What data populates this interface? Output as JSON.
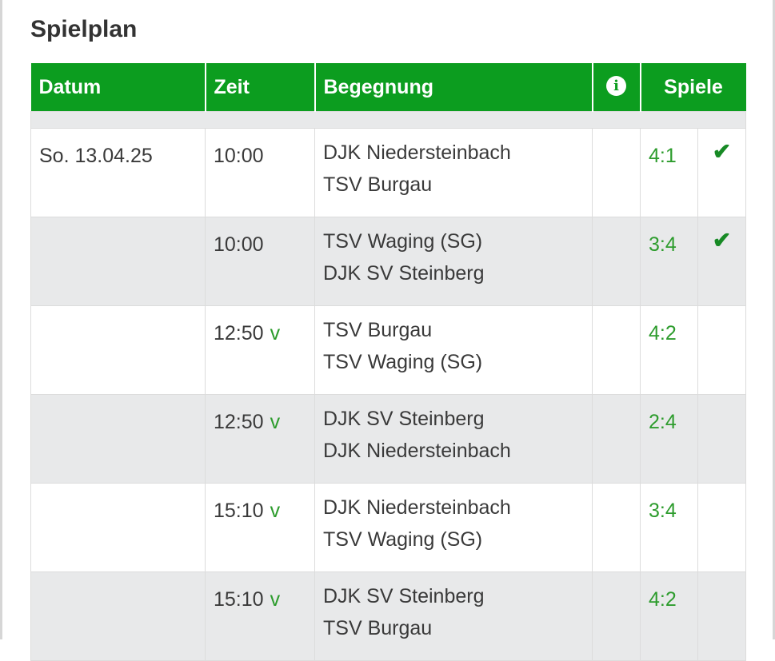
{
  "page": {
    "title": "Spielplan"
  },
  "table": {
    "headers": {
      "datum": "Datum",
      "zeit": "Zeit",
      "begegnung": "Begegnung",
      "spiele": "Spiele"
    },
    "rows": [
      {
        "datum": "So. 13.04.25",
        "zeit": "10:00",
        "v": "",
        "team1": "DJK Niedersteinbach",
        "team2": "TSV Burgau",
        "score": "4:1",
        "check": "✔"
      },
      {
        "datum": "",
        "zeit": "10:00",
        "v": "",
        "team1": "TSV Waging (SG)",
        "team2": "DJK SV Steinberg",
        "score": "3:4",
        "check": "✔"
      },
      {
        "datum": "",
        "zeit": "12:50",
        "v": "v",
        "team1": "TSV Burgau",
        "team2": "TSV Waging (SG)",
        "score": "4:2",
        "check": ""
      },
      {
        "datum": "",
        "zeit": "12:50",
        "v": "v",
        "team1": "DJK SV Steinberg",
        "team2": "DJK Niedersteinbach",
        "score": "2:4",
        "check": ""
      },
      {
        "datum": "",
        "zeit": "15:10",
        "v": "v",
        "team1": "DJK Niedersteinbach",
        "team2": "TSV Waging (SG)",
        "score": "3:4",
        "check": ""
      },
      {
        "datum": "",
        "zeit": "15:10",
        "v": "v",
        "team1": "DJK SV Steinberg",
        "team2": "TSV Burgau",
        "score": "4:2",
        "check": ""
      }
    ]
  },
  "colors": {
    "header_green": "#0c9d1f",
    "score_green": "#2d9c2d",
    "row_alt": "#e8e9ea"
  },
  "icons": {
    "info": "info-icon",
    "check": "check-icon"
  }
}
